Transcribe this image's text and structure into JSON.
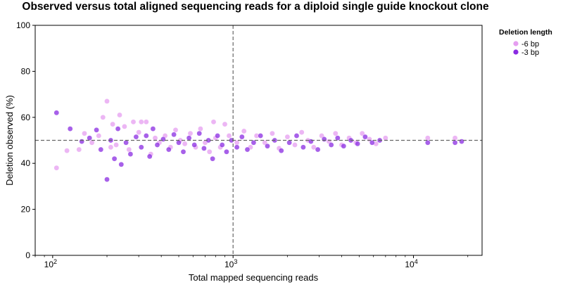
{
  "chart_data": {
    "type": "scatter",
    "title": "Observed versus total aligned sequencing reads for a diploid single guide knockout clone",
    "xlabel": "Total mapped sequencing reads",
    "ylabel": "Deletion observed (%)",
    "x_scale": "log",
    "xlim": [
      80,
      24000
    ],
    "ylim": [
      0,
      100
    ],
    "x_ticks": [
      {
        "value": 100,
        "base": "10",
        "exp": "2"
      },
      {
        "value": 1000,
        "base": "10",
        "exp": "3"
      },
      {
        "value": 10000,
        "base": "10",
        "exp": "4"
      }
    ],
    "y_ticks": [
      "0",
      "20",
      "40",
      "60",
      "80",
      "100"
    ],
    "reference_lines": {
      "x": 1000,
      "y": 50,
      "style": "dashed"
    },
    "grid": false,
    "legend": {
      "title": "Deletion length",
      "position": "outside-right-top"
    },
    "series": [
      {
        "name": "-6 bp",
        "color": "#e59ef0",
        "points": [
          [
            105,
            38.0
          ],
          [
            120,
            45.5
          ],
          [
            140,
            46.0
          ],
          [
            150,
            53.0
          ],
          [
            165,
            49.0
          ],
          [
            180,
            52.0
          ],
          [
            190,
            60.0
          ],
          [
            200,
            67.0
          ],
          [
            210,
            47.0
          ],
          [
            215,
            57.0
          ],
          [
            225,
            48.0
          ],
          [
            235,
            61.0
          ],
          [
            250,
            56.0
          ],
          [
            265,
            46.0
          ],
          [
            280,
            58.0
          ],
          [
            300,
            53.5
          ],
          [
            310,
            58.0
          ],
          [
            330,
            58.0
          ],
          [
            350,
            44.0
          ],
          [
            370,
            51.0
          ],
          [
            390,
            49.0
          ],
          [
            420,
            52.0
          ],
          [
            450,
            47.0
          ],
          [
            480,
            54.5
          ],
          [
            510,
            50.0
          ],
          [
            540,
            48.5
          ],
          [
            580,
            53.0
          ],
          [
            620,
            47.0
          ],
          [
            660,
            55.0
          ],
          [
            700,
            49.0
          ],
          [
            740,
            45.0
          ],
          [
            780,
            58.0
          ],
          [
            800,
            51.0
          ],
          [
            850,
            47.0
          ],
          [
            900,
            57.0
          ],
          [
            950,
            52.0
          ],
          [
            1050,
            49.0
          ],
          [
            1150,
            54.0
          ],
          [
            1250,
            47.0
          ],
          [
            1350,
            52.0
          ],
          [
            1500,
            49.0
          ],
          [
            1650,
            53.0
          ],
          [
            1800,
            46.5
          ],
          [
            2000,
            51.5
          ],
          [
            2200,
            48.0
          ],
          [
            2400,
            53.5
          ],
          [
            2600,
            50.0
          ],
          [
            2800,
            47.0
          ],
          [
            3100,
            52.0
          ],
          [
            3400,
            49.5
          ],
          [
            3700,
            53.0
          ],
          [
            4000,
            48.0
          ],
          [
            4400,
            51.0
          ],
          [
            4800,
            49.0
          ],
          [
            5200,
            53.0
          ],
          [
            5700,
            50.5
          ],
          [
            6200,
            48.5
          ],
          [
            7000,
            51.0
          ],
          [
            12000,
            51.0
          ],
          [
            17000,
            51.0
          ]
        ]
      },
      {
        "name": "-3 bp",
        "color": "#8a2be2",
        "points": [
          [
            105,
            62.0
          ],
          [
            125,
            55.0
          ],
          [
            145,
            49.5
          ],
          [
            160,
            51.0
          ],
          [
            175,
            54.5
          ],
          [
            185,
            46.0
          ],
          [
            200,
            33.0
          ],
          [
            210,
            50.0
          ],
          [
            220,
            42.0
          ],
          [
            230,
            55.0
          ],
          [
            240,
            39.5
          ],
          [
            255,
            49.0
          ],
          [
            270,
            44.0
          ],
          [
            290,
            51.5
          ],
          [
            310,
            47.0
          ],
          [
            330,
            52.0
          ],
          [
            345,
            43.0
          ],
          [
            360,
            55.0
          ],
          [
            380,
            48.0
          ],
          [
            410,
            50.5
          ],
          [
            440,
            46.0
          ],
          [
            470,
            52.5
          ],
          [
            500,
            49.0
          ],
          [
            530,
            45.0
          ],
          [
            570,
            51.0
          ],
          [
            610,
            48.0
          ],
          [
            650,
            53.0
          ],
          [
            690,
            46.5
          ],
          [
            730,
            50.0
          ],
          [
            770,
            42.0
          ],
          [
            820,
            52.0
          ],
          [
            870,
            48.0
          ],
          [
            920,
            45.0
          ],
          [
            980,
            50.0
          ],
          [
            1050,
            47.0
          ],
          [
            1120,
            51.5
          ],
          [
            1200,
            46.0
          ],
          [
            1300,
            49.0
          ],
          [
            1420,
            52.0
          ],
          [
            1550,
            47.5
          ],
          [
            1700,
            50.0
          ],
          [
            1850,
            45.5
          ],
          [
            2050,
            49.0
          ],
          [
            2250,
            52.0
          ],
          [
            2450,
            47.0
          ],
          [
            2700,
            49.5
          ],
          [
            2950,
            46.0
          ],
          [
            3200,
            50.5
          ],
          [
            3500,
            48.0
          ],
          [
            3800,
            51.0
          ],
          [
            4100,
            47.5
          ],
          [
            4500,
            50.0
          ],
          [
            4900,
            48.5
          ],
          [
            5400,
            51.5
          ],
          [
            5900,
            49.0
          ],
          [
            6500,
            50.0
          ],
          [
            12000,
            49.0
          ],
          [
            17000,
            49.0
          ],
          [
            18500,
            49.5
          ]
        ]
      }
    ]
  }
}
